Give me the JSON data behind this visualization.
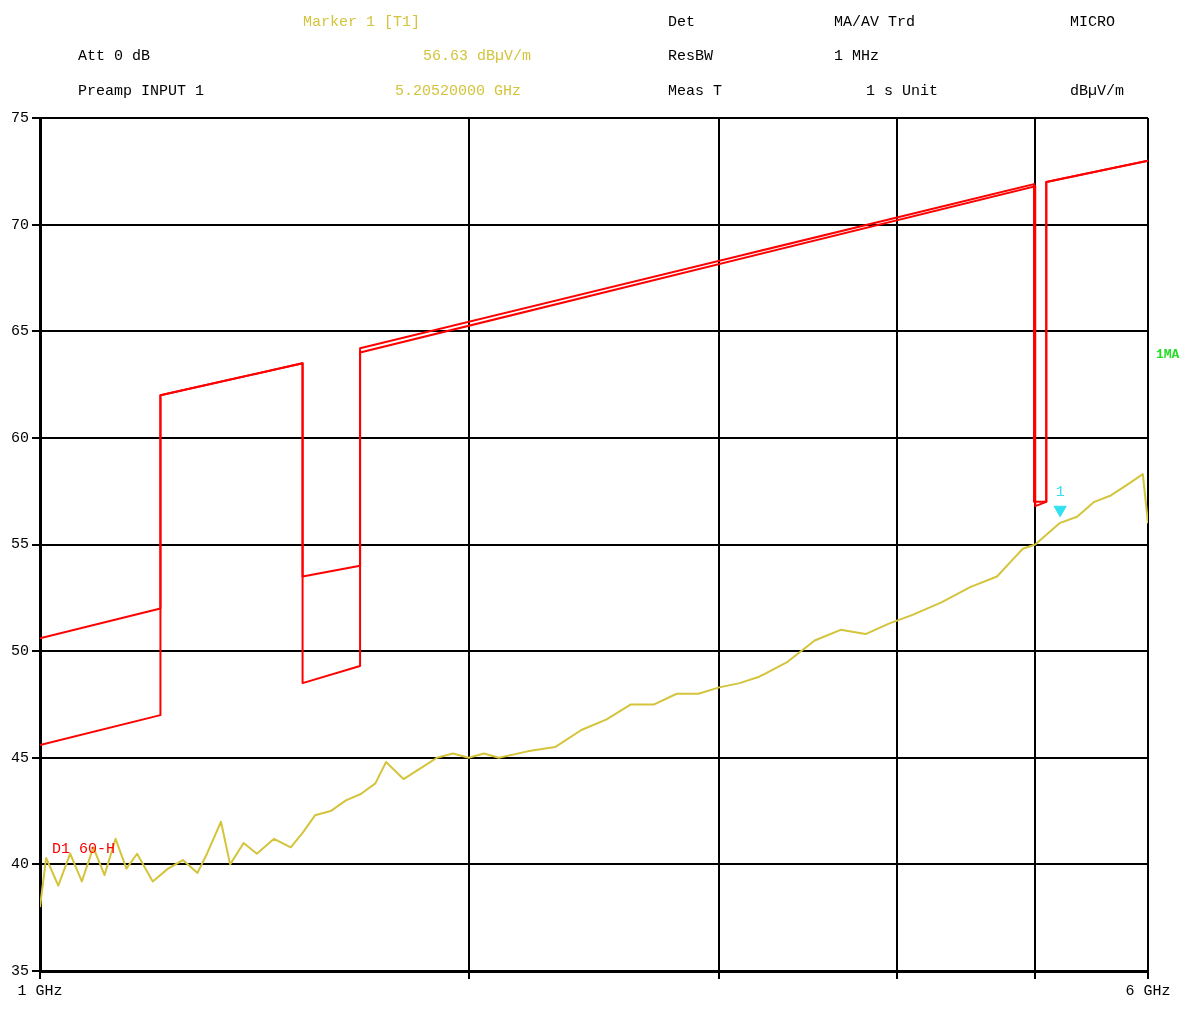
{
  "chart_data": {
    "type": "line",
    "log": "x",
    "grid": true,
    "legend": false,
    "marker": "none",
    "line_style": "solid",
    "xlim": [
      1,
      6
    ],
    "xticks": [
      {
        "value": 1,
        "label": "1 GHz"
      },
      {
        "value": 2,
        "label": null
      },
      {
        "value": 3,
        "label": null
      },
      {
        "value": 4,
        "label": null
      },
      {
        "value": 5,
        "label": null
      },
      {
        "value": 6,
        "label": "6 GHz"
      }
    ],
    "ylim": [
      35,
      75
    ],
    "yticks": [
      35,
      40,
      45,
      50,
      55,
      60,
      65,
      70,
      75
    ],
    "series": [
      {
        "type": "line",
        "color": "#ff0000",
        "x": [
          1,
          1.215,
          1.215,
          1.529,
          1.529,
          1.678,
          1.678,
          5.0,
          5.0,
          5.09,
          5.09,
          6
        ],
        "values": [
          45.6,
          47,
          62,
          63.5,
          48.5,
          49.3,
          64,
          71.8,
          56.8,
          57,
          72,
          73
        ]
      },
      {
        "type": "line",
        "color": "#ff0000",
        "x": [
          1,
          1.215,
          1.215,
          1.529,
          1.529,
          1.678,
          1.678,
          4.99,
          4.99,
          5.09,
          5.09,
          6
        ],
        "values": [
          50.6,
          52,
          62,
          63.5,
          53.5,
          54,
          64.2,
          71.9,
          57,
          57,
          72,
          73
        ]
      },
      {
        "type": "line",
        "color": "#d4c43c",
        "x": [
          1.0,
          1.01,
          1.03,
          1.05,
          1.07,
          1.09,
          1.11,
          1.13,
          1.15,
          1.17,
          1.2,
          1.23,
          1.26,
          1.29,
          1.31,
          1.34,
          1.36,
          1.39,
          1.42,
          1.46,
          1.5,
          1.53,
          1.56,
          1.6,
          1.64,
          1.68,
          1.72,
          1.75,
          1.8,
          1.85,
          1.9,
          1.95,
          2.0,
          2.05,
          2.1,
          2.2,
          2.3,
          2.4,
          2.5,
          2.6,
          2.7,
          2.8,
          2.9,
          3.0,
          3.1,
          3.2,
          3.35,
          3.5,
          3.65,
          3.8,
          3.95,
          4.1,
          4.3,
          4.5,
          4.7,
          4.9,
          5.0,
          5.1,
          5.2,
          5.35,
          5.5,
          5.65,
          5.8,
          5.95,
          6.0
        ],
        "values": [
          38,
          40.3,
          39,
          40.5,
          39.2,
          40.8,
          39.5,
          41.2,
          39.8,
          40.5,
          39.2,
          39.8,
          40.2,
          39.6,
          40.5,
          42,
          40,
          41,
          40.5,
          41.2,
          40.8,
          41.5,
          42.3,
          42.5,
          43,
          43.3,
          43.8,
          44.8,
          44,
          44.5,
          45,
          45.2,
          45,
          45.2,
          45,
          45.3,
          45.5,
          46.3,
          46.8,
          47.5,
          47.5,
          48,
          48,
          48.3,
          48.5,
          48.8,
          49.5,
          50.5,
          51,
          50.8,
          51.3,
          51.7,
          52.3,
          53,
          53.5,
          54.8,
          55,
          55.5,
          56,
          56.3,
          57,
          57.3,
          57.8,
          58.3,
          56
        ]
      },
      {
        "type": "scatter",
        "color": "#33e0f0",
        "marker": "triangle",
        "x": [
          5.2052
        ],
        "values": [
          56.63
        ]
      }
    ],
    "annotations": [
      "Marker 1 [T1]",
      "Det",
      "MA/AV Trd",
      "MICRO",
      "Att 0 dB",
      "56.63 dBµV/m",
      "ResBW",
      "1 MHz",
      "Preamp INPUT 1",
      "5.20520000 GHz",
      "Meas T",
      "1 s Unit",
      "dBµV/m",
      "1MA",
      "D1 60-H",
      {
        "text": "1",
        "x": 5.2052,
        "y": 56.63
      }
    ]
  }
}
